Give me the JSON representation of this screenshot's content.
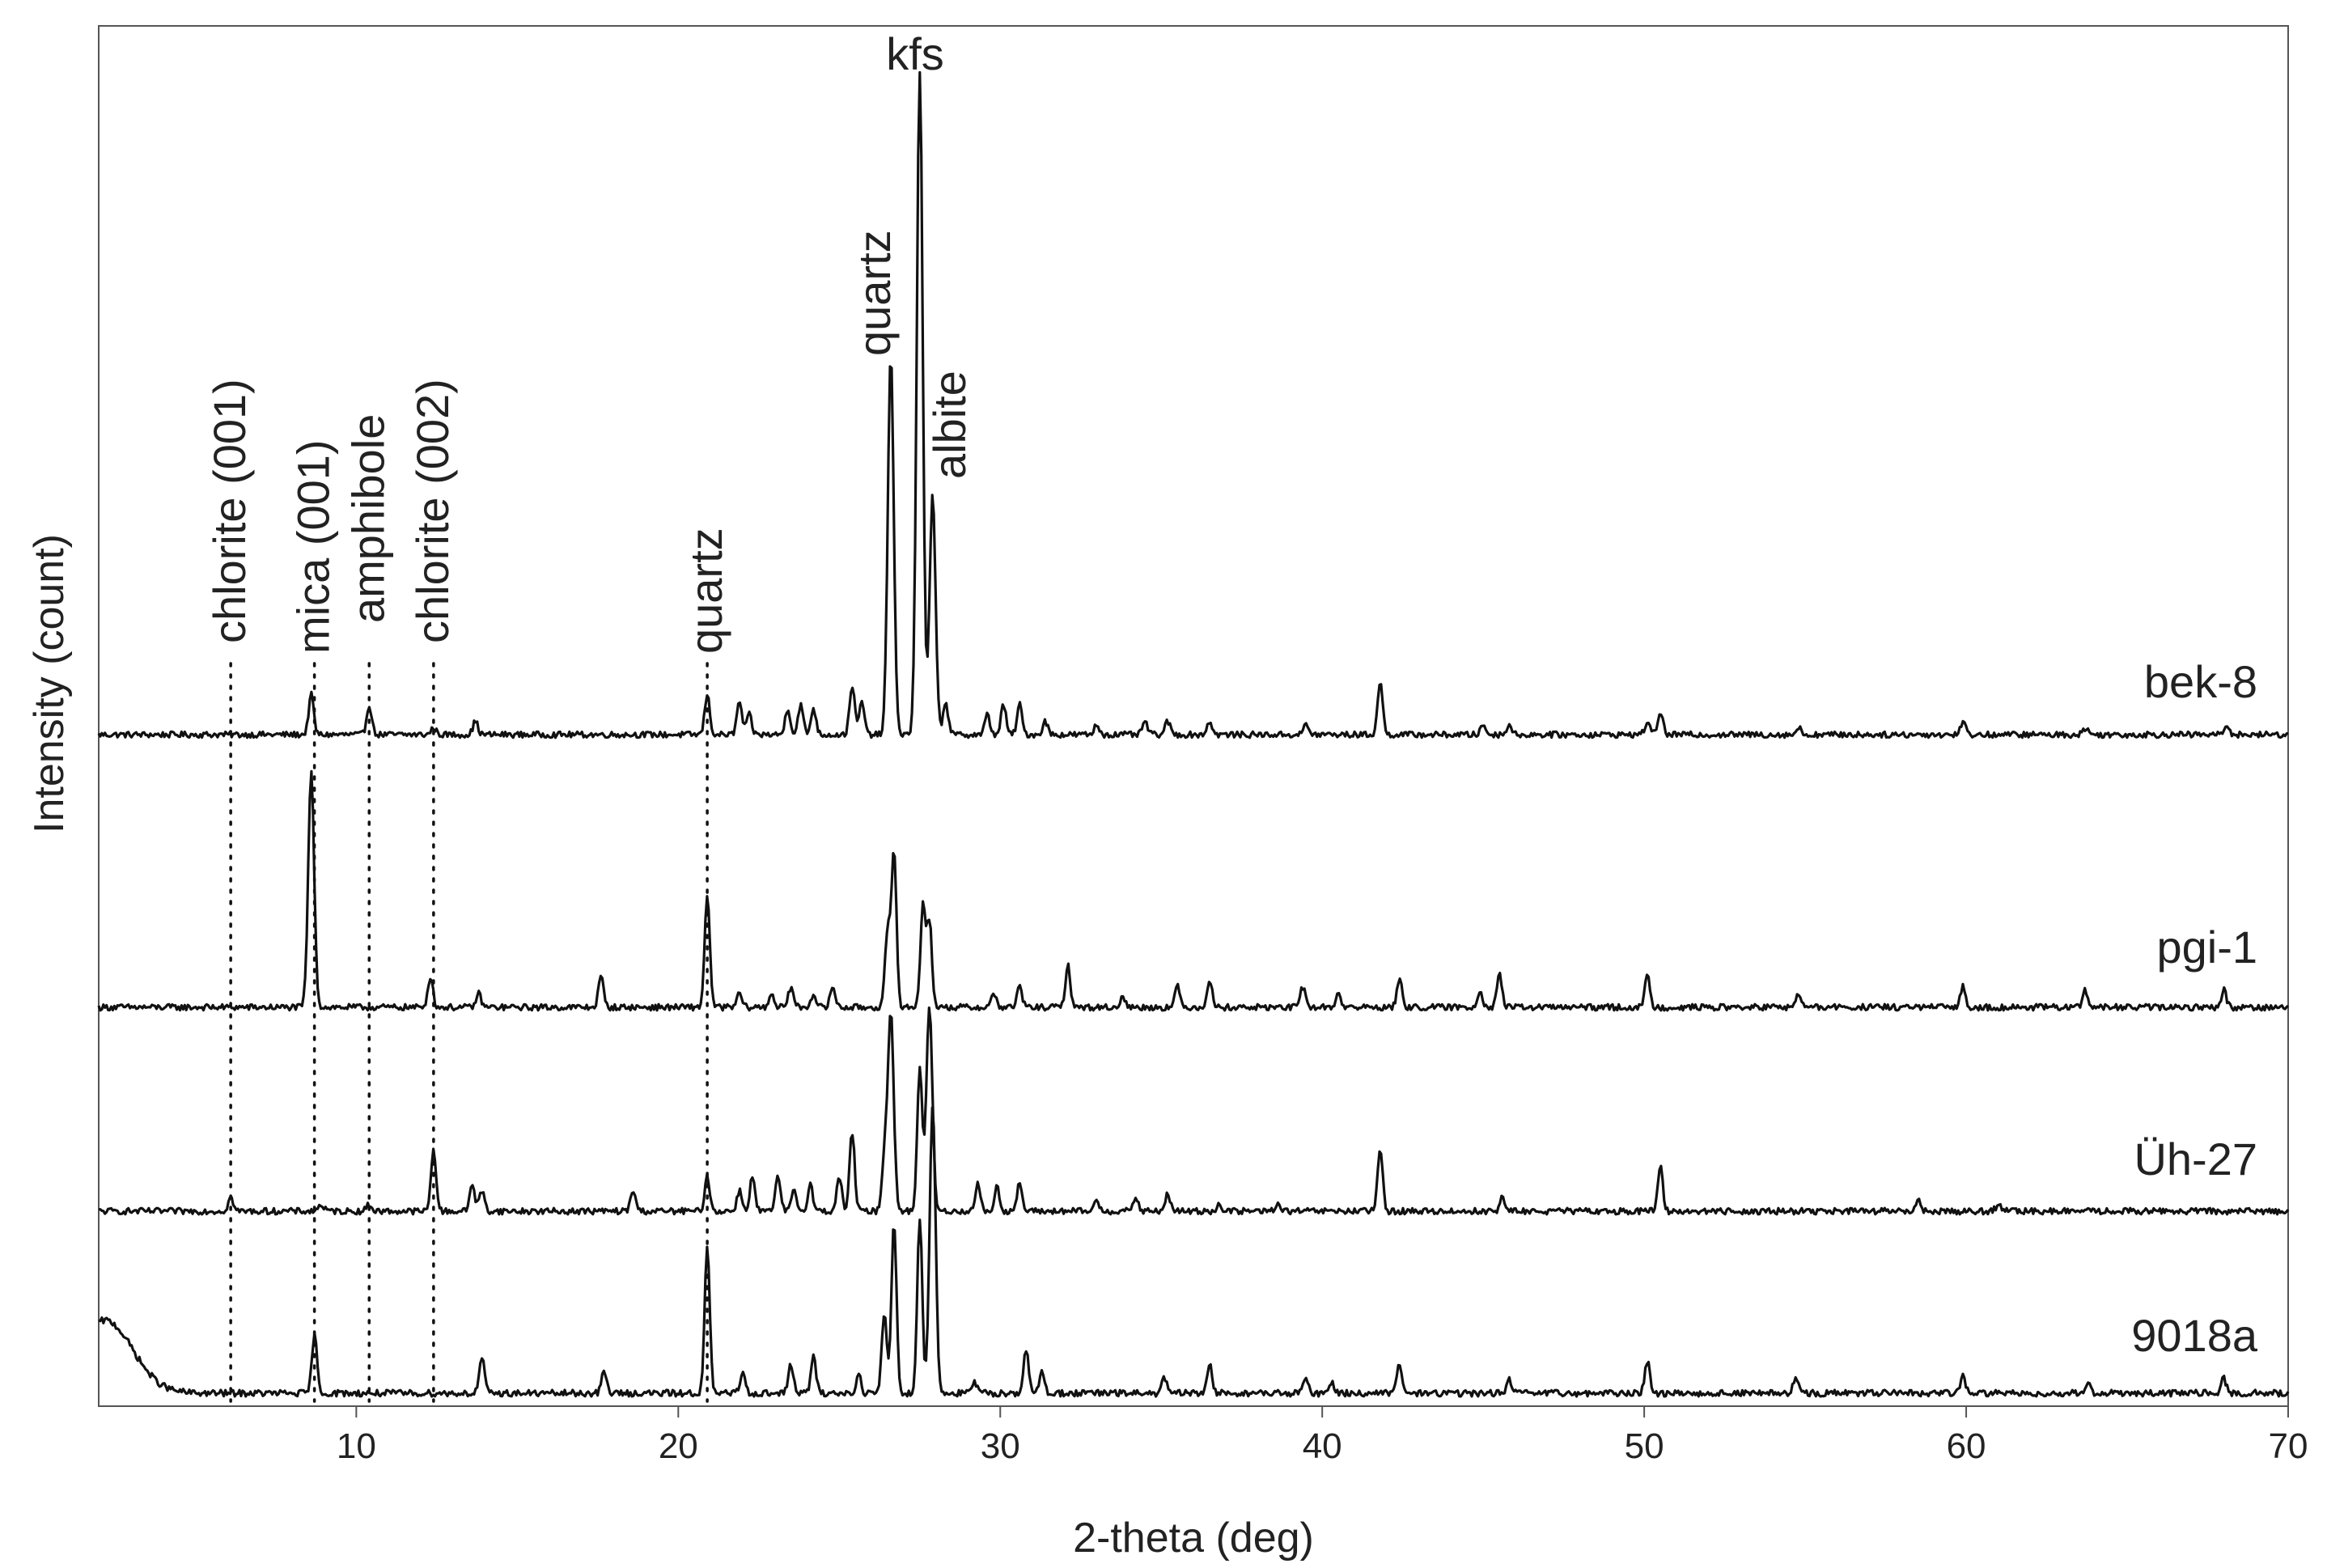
{
  "chart_data": {
    "type": "line",
    "xlabel": "2-theta (deg)",
    "ylabel": "Intensity (count)",
    "xlim": [
      2,
      70
    ],
    "x_ticks": [
      10,
      20,
      30,
      40,
      50,
      60,
      70
    ],
    "x_tick_labels": [
      "10",
      "20",
      "30",
      "40",
      "50",
      "60",
      "70"
    ],
    "y_ticks_shown": false,
    "grid": false,
    "legend": "none",
    "series_note_y": "relative intensity, traces vertically offset",
    "series": [
      {
        "name": "bek-8",
        "baseline": 0.0,
        "peaks": [
          [
            8.6,
            0.12
          ],
          [
            10.4,
            0.09
          ],
          [
            12.4,
            0.02
          ],
          [
            13.7,
            0.04
          ],
          [
            20.9,
            0.12
          ],
          [
            21.9,
            0.1
          ],
          [
            22.2,
            0.06
          ],
          [
            23.4,
            0.08
          ],
          [
            23.8,
            0.09
          ],
          [
            24.2,
            0.08
          ],
          [
            25.4,
            0.15
          ],
          [
            25.7,
            0.1
          ],
          [
            26.6,
            1.14
          ],
          [
            27.5,
            2.0
          ],
          [
            27.9,
            0.72
          ],
          [
            28.3,
            0.1
          ],
          [
            29.6,
            0.06
          ],
          [
            30.1,
            0.09
          ],
          [
            30.6,
            0.09
          ],
          [
            31.4,
            0.04
          ],
          [
            33.0,
            0.03
          ],
          [
            34.5,
            0.04
          ],
          [
            35.2,
            0.04
          ],
          [
            36.5,
            0.04
          ],
          [
            39.5,
            0.03
          ],
          [
            41.8,
            0.16
          ],
          [
            45.0,
            0.03
          ],
          [
            45.8,
            0.03
          ],
          [
            50.1,
            0.04
          ],
          [
            50.5,
            0.07
          ],
          [
            54.8,
            0.02
          ],
          [
            59.9,
            0.04
          ],
          [
            63.7,
            0.02
          ],
          [
            68.1,
            0.03
          ]
        ]
      },
      {
        "name": "pgi-1",
        "baseline": 0.0,
        "peaks": [
          [
            8.6,
            0.68
          ],
          [
            12.3,
            0.09
          ],
          [
            13.8,
            0.04
          ],
          [
            17.6,
            0.09
          ],
          [
            20.9,
            0.33
          ],
          [
            21.9,
            0.04
          ],
          [
            22.9,
            0.04
          ],
          [
            23.5,
            0.06
          ],
          [
            24.2,
            0.04
          ],
          [
            24.8,
            0.06
          ],
          [
            26.5,
            0.22
          ],
          [
            26.7,
            0.45
          ],
          [
            27.6,
            0.3
          ],
          [
            27.8,
            0.25
          ],
          [
            29.8,
            0.04
          ],
          [
            30.6,
            0.06
          ],
          [
            32.1,
            0.12
          ],
          [
            33.8,
            0.03
          ],
          [
            35.5,
            0.06
          ],
          [
            36.5,
            0.08
          ],
          [
            39.4,
            0.06
          ],
          [
            40.5,
            0.04
          ],
          [
            42.4,
            0.08
          ],
          [
            44.9,
            0.05
          ],
          [
            45.5,
            0.1
          ],
          [
            50.1,
            0.09
          ],
          [
            54.8,
            0.04
          ],
          [
            59.9,
            0.06
          ],
          [
            63.7,
            0.05
          ],
          [
            68.0,
            0.05
          ]
        ]
      },
      {
        "name": "Üh-27",
        "baseline": 0.0,
        "peaks": [
          [
            6.1,
            0.04
          ],
          [
            8.9,
            0.02
          ],
          [
            10.4,
            0.02
          ],
          [
            12.4,
            0.18
          ],
          [
            13.6,
            0.08
          ],
          [
            13.9,
            0.06
          ],
          [
            18.6,
            0.06
          ],
          [
            20.9,
            0.1
          ],
          [
            21.9,
            0.06
          ],
          [
            22.3,
            0.1
          ],
          [
            23.1,
            0.1
          ],
          [
            23.6,
            0.06
          ],
          [
            24.1,
            0.08
          ],
          [
            25.0,
            0.1
          ],
          [
            25.4,
            0.23
          ],
          [
            26.4,
            0.15
          ],
          [
            26.6,
            0.58
          ],
          [
            27.5,
            0.42
          ],
          [
            27.8,
            0.6
          ],
          [
            29.3,
            0.08
          ],
          [
            29.9,
            0.07
          ],
          [
            30.6,
            0.08
          ],
          [
            33.0,
            0.03
          ],
          [
            34.2,
            0.04
          ],
          [
            35.2,
            0.05
          ],
          [
            36.8,
            0.02
          ],
          [
            38.6,
            0.02
          ],
          [
            41.8,
            0.18
          ],
          [
            45.6,
            0.04
          ],
          [
            50.5,
            0.13
          ],
          [
            58.5,
            0.03
          ],
          [
            61.0,
            0.02
          ]
        ]
      },
      {
        "name": "9018a",
        "baseline": 0.0,
        "peaks": [
          [
            2.2,
            0.2
          ],
          [
            8.7,
            0.16
          ],
          [
            13.9,
            0.1
          ],
          [
            17.7,
            0.06
          ],
          [
            20.9,
            0.4
          ],
          [
            22.0,
            0.06
          ],
          [
            23.5,
            0.08
          ],
          [
            24.2,
            0.1
          ],
          [
            25.6,
            0.05
          ],
          [
            26.4,
            0.22
          ],
          [
            26.7,
            0.47
          ],
          [
            27.5,
            0.48
          ],
          [
            27.9,
            0.79
          ],
          [
            29.2,
            0.03
          ],
          [
            30.8,
            0.12
          ],
          [
            31.3,
            0.06
          ],
          [
            35.1,
            0.04
          ],
          [
            36.5,
            0.08
          ],
          [
            39.5,
            0.04
          ],
          [
            40.3,
            0.03
          ],
          [
            42.4,
            0.08
          ],
          [
            45.8,
            0.04
          ],
          [
            50.1,
            0.09
          ],
          [
            54.7,
            0.04
          ],
          [
            59.9,
            0.05
          ],
          [
            63.8,
            0.03
          ],
          [
            68.0,
            0.04
          ]
        ]
      }
    ],
    "reference_lines": [
      {
        "label": "chlorite (001)",
        "x": 6.1
      },
      {
        "label": "mica (001)",
        "x": 8.7
      },
      {
        "label": "amphibole",
        "x": 10.4
      },
      {
        "label": "chlorite (002)",
        "x": 12.4
      },
      {
        "label": "quartz",
        "x": 20.9
      }
    ],
    "peak_annotations": [
      {
        "label": "quartz",
        "x": 26.6
      },
      {
        "label": "kfs",
        "x": 27.5
      },
      {
        "label": "albite",
        "x": 27.9
      }
    ]
  }
}
